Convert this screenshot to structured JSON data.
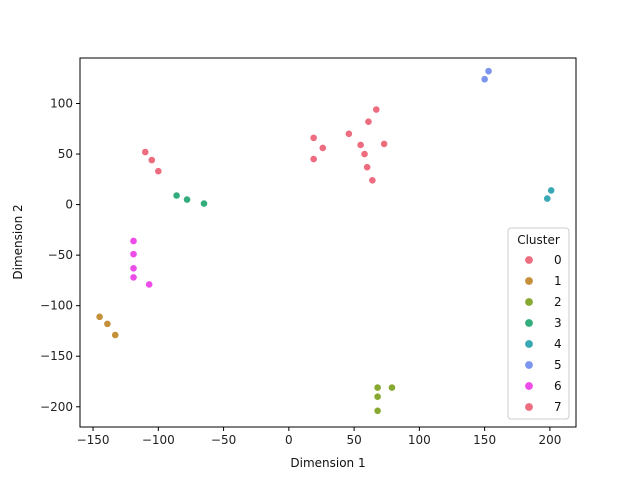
{
  "chart_data": {
    "type": "scatter",
    "xlabel": "Dimension 1",
    "ylabel": "Dimension 2",
    "xlim": [
      -160,
      220
    ],
    "ylim": [
      -220,
      145
    ],
    "xticks": [
      -150,
      -100,
      -50,
      0,
      50,
      100,
      150,
      200
    ],
    "yticks": [
      -200,
      -150,
      -100,
      -50,
      0,
      50,
      100
    ],
    "xtick_labels": [
      "−150",
      "−100",
      "−50",
      "0",
      "50",
      "100",
      "150",
      "200"
    ],
    "ytick_labels": [
      "−200",
      "−150",
      "−100",
      "−50",
      "0",
      "50",
      "100"
    ],
    "grid": false,
    "legend": {
      "title": "Cluster",
      "position": "lower-right"
    },
    "series": [
      {
        "name": "0",
        "color": "#ed6c7f",
        "points": [
          [
            -110,
            52
          ],
          [
            -105,
            44
          ],
          [
            -100,
            33
          ],
          [
            19,
            66
          ],
          [
            19,
            45
          ],
          [
            26,
            56
          ],
          [
            46,
            70
          ],
          [
            55,
            59
          ],
          [
            58,
            50
          ],
          [
            60,
            37
          ],
          [
            61,
            82
          ],
          [
            64,
            24
          ],
          [
            67,
            94
          ],
          [
            73,
            60
          ]
        ]
      },
      {
        "name": "1",
        "color": "#c4903a",
        "points": [
          [
            -145,
            -111
          ],
          [
            -139,
            -118
          ],
          [
            -133,
            -129
          ]
        ]
      },
      {
        "name": "2",
        "color": "#87a831",
        "points": [
          [
            68,
            -181
          ],
          [
            79,
            -181
          ],
          [
            68,
            -190
          ],
          [
            68,
            -204
          ]
        ]
      },
      {
        "name": "3",
        "color": "#34ad7c",
        "points": [
          [
            -86,
            9
          ],
          [
            -78,
            5
          ],
          [
            -65,
            1
          ]
        ]
      },
      {
        "name": "4",
        "color": "#37a8b4",
        "points": [
          [
            201,
            14
          ],
          [
            198,
            6
          ]
        ]
      },
      {
        "name": "5",
        "color": "#7c95ee",
        "points": [
          [
            153,
            132
          ],
          [
            150,
            124
          ]
        ]
      },
      {
        "name": "6",
        "color": "#ee4ce9",
        "points": [
          [
            -119,
            -36
          ],
          [
            -119,
            -49
          ],
          [
            -119,
            -63
          ],
          [
            -119,
            -72
          ],
          [
            -107,
            -79
          ]
        ]
      },
      {
        "name": "7",
        "color": "#ed6c7f",
        "points": []
      }
    ]
  }
}
